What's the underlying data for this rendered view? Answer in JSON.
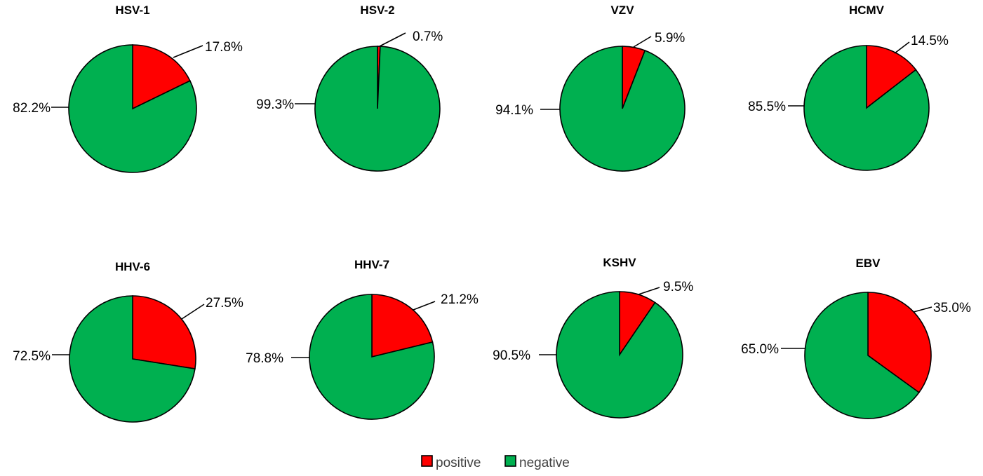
{
  "colors": {
    "positive": "#ff0000",
    "negative": "#00b050"
  },
  "legend": {
    "placement": "bottom",
    "items": [
      {
        "label": "positive",
        "color_key": "positive"
      },
      {
        "label": "negative",
        "color_key": "negative"
      }
    ]
  },
  "chart_data": [
    {
      "type": "pie",
      "title": "HSV-1",
      "slices": [
        {
          "name": "positive",
          "value": 17.8,
          "label": "17.8%"
        },
        {
          "name": "negative",
          "value": 82.2,
          "label": "82.2%"
        }
      ]
    },
    {
      "type": "pie",
      "title": "HSV-2",
      "slices": [
        {
          "name": "positive",
          "value": 0.7,
          "label": "0.7%"
        },
        {
          "name": "negative",
          "value": 99.3,
          "label": "99.3%"
        }
      ]
    },
    {
      "type": "pie",
      "title": "VZV",
      "slices": [
        {
          "name": "positive",
          "value": 5.9,
          "label": "5.9%"
        },
        {
          "name": "negative",
          "value": 94.1,
          "label": "94.1%"
        }
      ]
    },
    {
      "type": "pie",
      "title": "HCMV",
      "slices": [
        {
          "name": "positive",
          "value": 14.5,
          "label": "14.5%"
        },
        {
          "name": "negative",
          "value": 85.5,
          "label": "85.5%"
        }
      ]
    },
    {
      "type": "pie",
      "title": "HHV-6",
      "slices": [
        {
          "name": "positive",
          "value": 27.5,
          "label": "27.5%"
        },
        {
          "name": "negative",
          "value": 72.5,
          "label": "72.5%"
        }
      ]
    },
    {
      "type": "pie",
      "title": "HHV-7",
      "slices": [
        {
          "name": "positive",
          "value": 21.2,
          "label": "21.2%"
        },
        {
          "name": "negative",
          "value": 78.8,
          "label": "78.8%"
        }
      ]
    },
    {
      "type": "pie",
      "title": "KSHV",
      "slices": [
        {
          "name": "positive",
          "value": 9.5,
          "label": "9.5%"
        },
        {
          "name": "negative",
          "value": 90.5,
          "label": "90.5%"
        }
      ]
    },
    {
      "type": "pie",
      "title": "EBV",
      "slices": [
        {
          "name": "positive",
          "value": 35.0,
          "label": "35.0%"
        },
        {
          "name": "negative",
          "value": 65.0,
          "label": "65.0%"
        }
      ]
    }
  ]
}
